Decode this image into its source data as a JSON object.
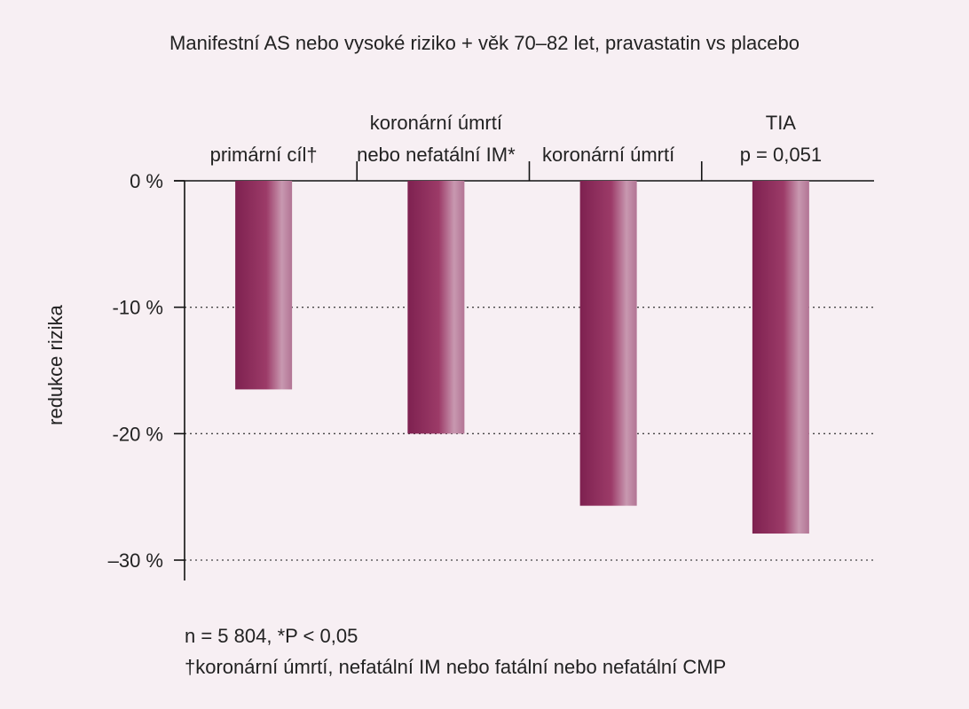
{
  "chart_data": {
    "type": "bar",
    "title": "Manifestní AS nebo vysoké riziko + věk 70–82 let, pravastatin vs placebo",
    "ylabel": "redukce rizika",
    "xlabel": "",
    "categories": [
      [
        "primární cíl†"
      ],
      [
        "koronární úmrtí",
        "nebo nefatální IM*"
      ],
      [
        "koronární úmrtí"
      ],
      [
        "TIA",
        "p = 0,051"
      ]
    ],
    "values": [
      -16.5,
      -20,
      -25.7,
      -27.9
    ],
    "ylim": [
      -30,
      0
    ],
    "yticks": [
      0,
      -10,
      -20,
      -30
    ],
    "ytick_labels": [
      "0 %",
      "-10 %",
      "-20 %",
      "–30 %"
    ],
    "grid": "dotted horizontal at -10, -20, -30",
    "bar_color": "#8a2a55",
    "bar_highlight": "#c48aa6"
  },
  "footnotes": {
    "line1": "n = 5 804, *P < 0,05",
    "line2": "†koronární úmrtí, nefatální IM nebo fatální nebo nefatální CMP"
  }
}
